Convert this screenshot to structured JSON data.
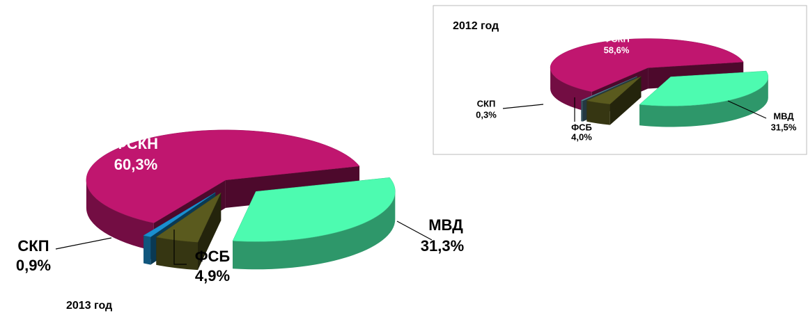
{
  "chart_data": [
    {
      "type": "pie",
      "title": "2013 год",
      "categories": [
        "ФСКН",
        "МВД",
        "ФСБ",
        "СКП"
      ],
      "values": [
        60.3,
        31.3,
        4.9,
        0.9
      ],
      "value_labels": [
        "60,3%",
        "31,3%",
        "4,9%",
        "0,9%"
      ],
      "colors": [
        "#c0166f",
        "#4dfbb0",
        "#5a5a1e",
        "#1a8fd0"
      ]
    },
    {
      "type": "pie",
      "title": "2012 год",
      "categories": [
        "ФСКН",
        "МВД",
        "ФСБ",
        "СКП"
      ],
      "values": [
        58.6,
        31.5,
        4.0,
        0.3
      ],
      "value_labels": [
        "58,6%",
        "31,5%",
        "4,0%",
        "0,3%"
      ],
      "colors": [
        "#c0166f",
        "#4dfbb0",
        "#5a5a1e",
        "#5a8ca0"
      ]
    }
  ]
}
